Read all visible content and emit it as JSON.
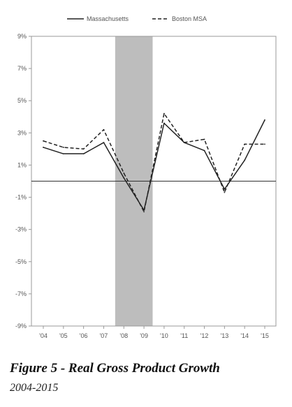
{
  "caption": {
    "title": "Figure 5 - Real Gross Product Growth",
    "subtitle": "2004-2015"
  },
  "chart_data": {
    "type": "line",
    "categories": [
      "'04",
      "'05",
      "'06",
      "'07",
      "'08",
      "'09",
      "'10",
      "'11",
      "'12",
      "'13",
      "'14",
      "'15"
    ],
    "series": [
      {
        "name": "Massachusetts",
        "style": "solid",
        "color": "#222222",
        "values": [
          2.1,
          1.7,
          1.7,
          2.4,
          0.2,
          -1.8,
          3.6,
          2.4,
          1.9,
          -0.5,
          1.3,
          3.8
        ]
      },
      {
        "name": "Boston MSA",
        "style": "dashed",
        "color": "#222222",
        "values": [
          2.5,
          2.1,
          2.0,
          3.2,
          0.5,
          -1.9,
          4.2,
          2.4,
          2.6,
          -0.7,
          2.3,
          2.3
        ]
      }
    ],
    "y_ticks": [
      "9%",
      "7%",
      "5%",
      "3%",
      "1%",
      "-1%",
      "-3%",
      "-5%",
      "-7%",
      "-9%"
    ],
    "ylim": [
      -9,
      9
    ],
    "recession_band": {
      "from": "'08",
      "to": "'09",
      "color": "#bdbdbd"
    },
    "zero_line": true,
    "grid": false,
    "legend_position": "top-center"
  }
}
